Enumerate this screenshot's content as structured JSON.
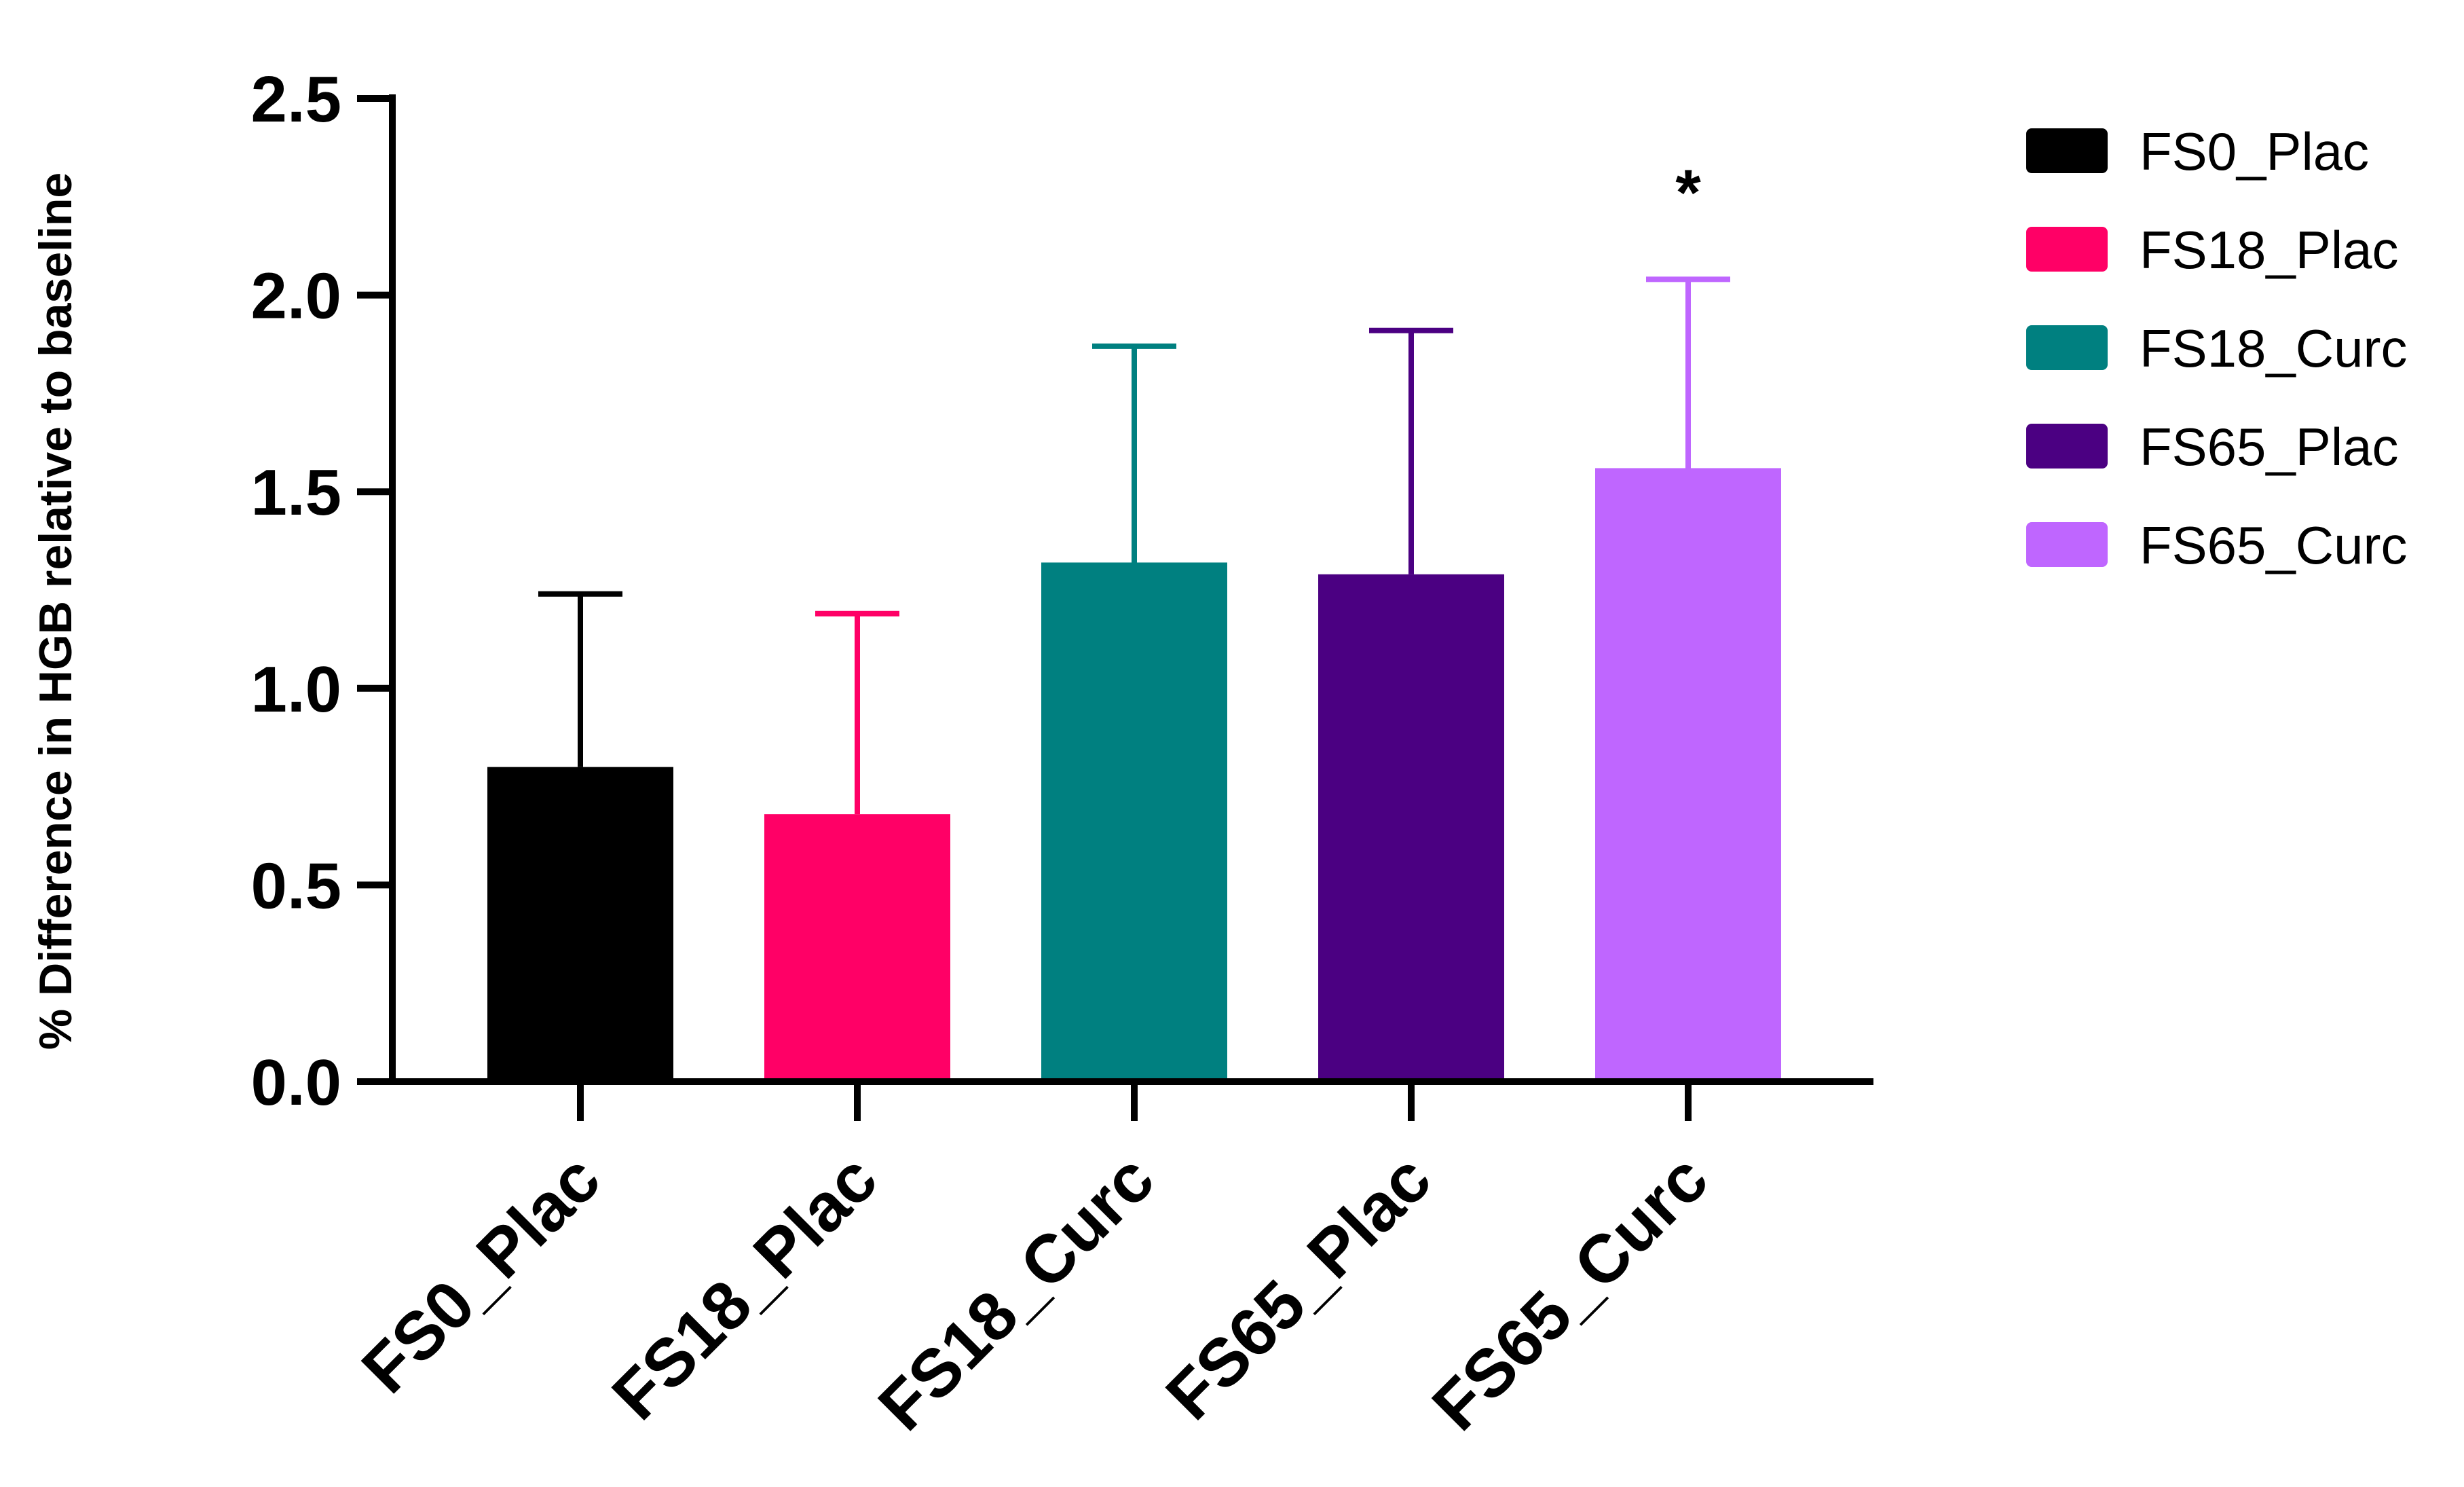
{
  "chart_data": {
    "type": "bar",
    "title": "",
    "xlabel": "",
    "ylabel": "%  Difference in HGB relative to baseline",
    "ylim": [
      0,
      2.5
    ],
    "yticks": [
      "0.0",
      "0.5",
      "1.0",
      "1.5",
      "2.0",
      "2.5"
    ],
    "grid": false,
    "legend_position": "right",
    "categories": [
      "FS0_Plac",
      "FS18_Plac",
      "FS18_Curc",
      "FS65_Plac",
      "FS65_Curc"
    ],
    "values": [
      0.8,
      0.68,
      1.32,
      1.29,
      1.56
    ],
    "error_upper": [
      1.24,
      1.19,
      1.87,
      1.91,
      2.04
    ],
    "colors": [
      "#000000",
      "#ff0066",
      "#008080",
      "#4b0082",
      "#bf66ff"
    ],
    "annotations": [
      {
        "category": "FS65_Curc",
        "text": "*"
      }
    ],
    "legend": [
      "FS0_Plac",
      "FS18_Plac",
      "FS18_Curc",
      "FS65_Plac",
      "FS65_Curc"
    ]
  }
}
